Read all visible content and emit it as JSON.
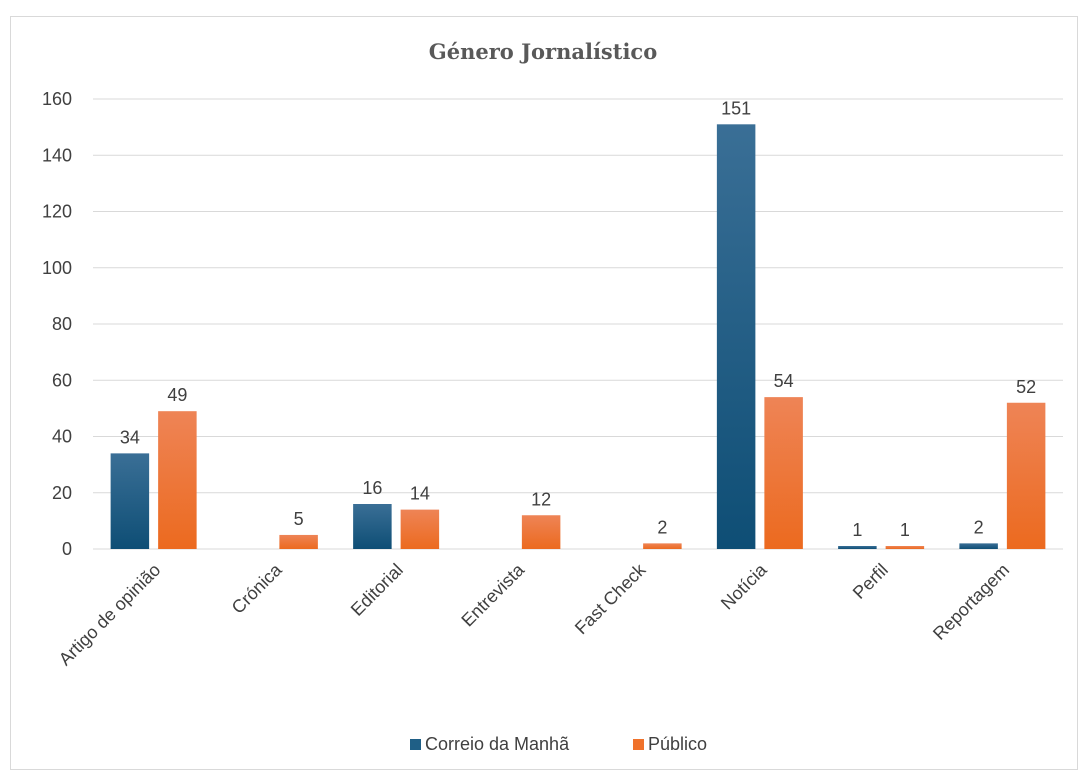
{
  "chart_data": {
    "type": "bar",
    "title": "Género Jornalístico",
    "xlabel": "",
    "ylabel": "",
    "categories": [
      "Artigo de opinião",
      "Crónica",
      "Editorial",
      "Entrevista",
      "Fast Check",
      "Notícia",
      "Perfil",
      "Reportagem"
    ],
    "series": [
      {
        "name": "Correio da Manhã",
        "color": "#1f5f86",
        "values": [
          34,
          null,
          16,
          null,
          null,
          151,
          1,
          2
        ]
      },
      {
        "name": "Público",
        "color": "#f0722b",
        "values": [
          49,
          5,
          14,
          12,
          2,
          54,
          1,
          52
        ]
      }
    ],
    "ylim": [
      0,
      160
    ],
    "yticks": [
      0,
      20,
      40,
      60,
      80,
      100,
      120,
      140,
      160
    ],
    "grid": true,
    "legend": "bottom",
    "data_labels": true
  }
}
